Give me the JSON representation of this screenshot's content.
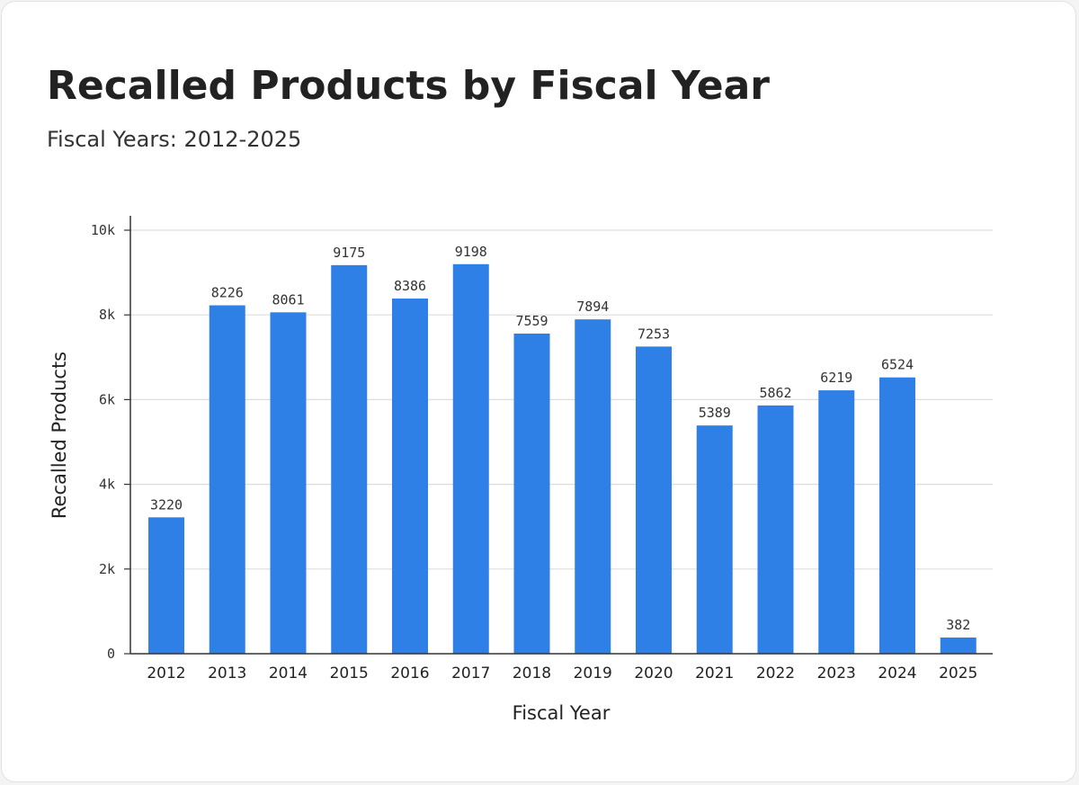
{
  "chart_data": {
    "type": "bar",
    "title": "Recalled Products by Fiscal Year",
    "subtitle": "Fiscal Years: 2012-2025",
    "xlabel": "Fiscal Year",
    "ylabel": "Recalled Products",
    "categories": [
      "2012",
      "2013",
      "2014",
      "2015",
      "2016",
      "2017",
      "2018",
      "2019",
      "2020",
      "2021",
      "2022",
      "2023",
      "2024",
      "2025"
    ],
    "values": [
      3220,
      8226,
      8061,
      9175,
      8386,
      9198,
      7559,
      7894,
      7253,
      5389,
      5862,
      6219,
      6524,
      382
    ],
    "ylim": [
      0,
      10000
    ],
    "yticks": [
      0,
      2000,
      4000,
      6000,
      8000,
      10000
    ],
    "ytick_labels": [
      "0",
      "2k",
      "4k",
      "6k",
      "8k",
      "10k"
    ],
    "grid": true,
    "legend": "none",
    "bar_color": "#2f80e6"
  }
}
